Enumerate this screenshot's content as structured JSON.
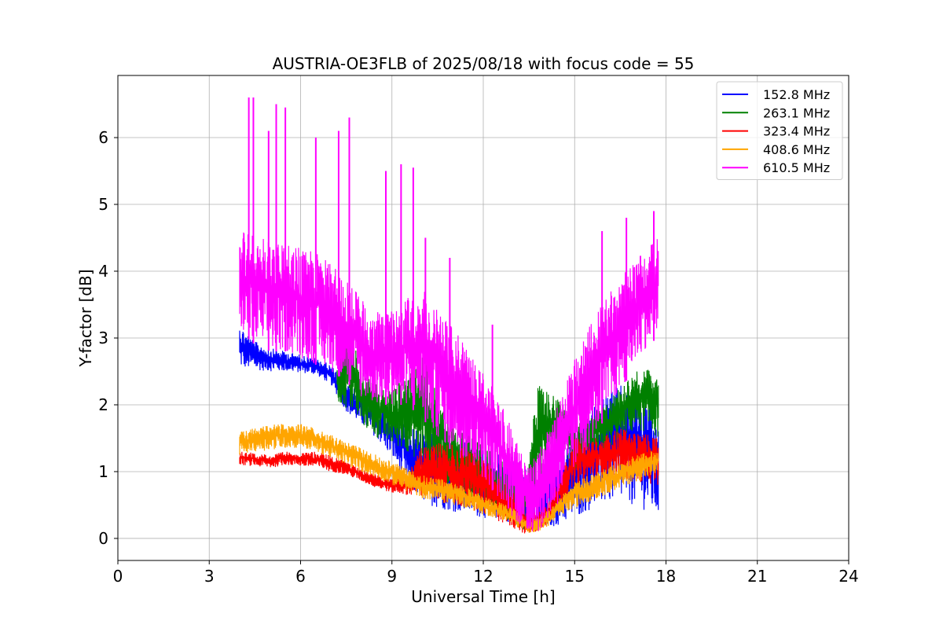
{
  "chart_data": {
    "type": "line",
    "title": "AUSTRIA-OE3FLB of 2025/08/18 with focus code = 55",
    "xlabel": "Universal Time [h]",
    "ylabel": "Y-factor [dB]",
    "xlim": [
      0,
      24
    ],
    "ylim": [
      -0.33,
      6.93
    ],
    "xticks": [
      0,
      3,
      6,
      9,
      12,
      15,
      18,
      21,
      24
    ],
    "yticks": [
      0,
      1,
      2,
      3,
      4,
      5,
      6
    ],
    "grid": true,
    "legend_position": "top-right",
    "series": [
      {
        "name": "152.8 MHz",
        "color": "#0000ff",
        "x": [
          4.0,
          4.5,
          5.0,
          5.5,
          6.0,
          6.5,
          7.0,
          7.5,
          8.0,
          8.5,
          9.0,
          9.5,
          10.0,
          10.5,
          11.0,
          11.5,
          12.0,
          12.5,
          13.0,
          13.3,
          13.6,
          14.0,
          14.5,
          15.0,
          15.5,
          16.0,
          16.5,
          17.0,
          17.4,
          17.75
        ],
        "y_low": [
          2.55,
          2.52,
          2.5,
          2.5,
          2.48,
          2.45,
          2.3,
          1.9,
          1.7,
          1.5,
          1.2,
          0.8,
          0.55,
          0.45,
          0.4,
          0.35,
          0.3,
          0.28,
          0.22,
          0.15,
          0.1,
          0.12,
          0.2,
          0.3,
          0.42,
          0.5,
          0.55,
          0.48,
          0.4,
          0.35
        ],
        "y_high": [
          3.2,
          2.95,
          2.85,
          2.8,
          2.75,
          2.7,
          2.6,
          2.3,
          2.2,
          2.0,
          1.95,
          1.7,
          1.6,
          1.55,
          1.5,
          1.45,
          1.35,
          1.3,
          1.25,
          1.1,
          1.0,
          1.05,
          1.2,
          1.5,
          1.9,
          2.2,
          2.3,
          2.3,
          2.1,
          1.6
        ]
      },
      {
        "name": "263.1 MHz",
        "color": "#008000",
        "x": [
          7.2,
          7.6,
          8.0,
          8.5,
          9.0,
          9.5,
          10.0,
          10.5,
          11.0,
          11.5,
          12.0,
          12.5,
          13.0,
          13.4,
          13.8,
          14.2,
          14.6,
          15.0,
          15.5,
          16.0,
          16.5,
          17.0,
          17.4,
          17.75
        ],
        "y_low": [
          2.0,
          1.9,
          1.7,
          1.5,
          1.4,
          1.3,
          1.1,
          0.9,
          0.75,
          0.6,
          0.45,
          0.35,
          0.2,
          0.1,
          0.5,
          1.2,
          1.3,
          1.0,
          1.1,
          1.3,
          1.5,
          1.6,
          1.6,
          1.5
        ],
        "y_high": [
          2.6,
          3.3,
          2.5,
          2.3,
          2.2,
          2.5,
          2.9,
          2.1,
          1.8,
          1.6,
          1.4,
          1.2,
          1.0,
          1.0,
          2.3,
          2.2,
          2.0,
          1.7,
          1.9,
          2.0,
          2.3,
          2.5,
          2.55,
          2.4
        ]
      },
      {
        "name": "323.4 MHz",
        "color": "#ff0000",
        "x": [
          4.0,
          4.5,
          5.0,
          5.5,
          6.0,
          6.5,
          7.0,
          7.5,
          8.0,
          8.5,
          9.0,
          9.5,
          10.0,
          10.5,
          11.0,
          11.5,
          12.0,
          12.5,
          13.0,
          13.4,
          13.8,
          14.2,
          14.6,
          15.0,
          15.5,
          16.0,
          16.5,
          17.0,
          17.4,
          17.75
        ],
        "y_low": [
          1.1,
          1.08,
          1.05,
          1.1,
          1.08,
          1.05,
          1.0,
          0.95,
          0.85,
          0.75,
          0.68,
          0.65,
          0.6,
          0.55,
          0.5,
          0.42,
          0.35,
          0.25,
          0.15,
          0.05,
          0.1,
          0.25,
          0.55,
          0.75,
          0.85,
          0.9,
          0.9,
          0.85,
          0.82,
          0.8
        ],
        "y_high": [
          1.3,
          1.28,
          1.25,
          1.3,
          1.28,
          1.3,
          1.25,
          1.15,
          1.05,
          0.95,
          0.9,
          0.95,
          1.4,
          1.45,
          1.4,
          1.35,
          1.2,
          1.0,
          0.7,
          0.4,
          0.4,
          0.6,
          1.0,
          1.5,
          1.5,
          1.55,
          1.65,
          1.6,
          1.6,
          1.5
        ]
      },
      {
        "name": "408.6 MHz",
        "color": "#ffa500",
        "x": [
          4.0,
          4.5,
          5.0,
          5.5,
          6.0,
          6.5,
          7.0,
          7.5,
          8.0,
          8.5,
          9.0,
          9.5,
          10.0,
          10.5,
          11.0,
          11.5,
          12.0,
          12.5,
          13.0,
          13.4,
          13.8,
          14.2,
          14.6,
          15.0,
          15.5,
          16.0,
          16.5,
          17.0,
          17.4,
          17.75
        ],
        "y_low": [
          1.25,
          1.3,
          1.32,
          1.35,
          1.35,
          1.3,
          1.2,
          1.1,
          1.0,
          0.9,
          0.8,
          0.7,
          0.6,
          0.55,
          0.5,
          0.45,
          0.35,
          0.3,
          0.2,
          0.08,
          0.1,
          0.2,
          0.35,
          0.45,
          0.55,
          0.65,
          0.75,
          0.85,
          0.9,
          0.95
        ],
        "y_high": [
          1.6,
          1.65,
          1.7,
          1.72,
          1.72,
          1.65,
          1.55,
          1.45,
          1.35,
          1.25,
          1.15,
          1.05,
          0.95,
          0.9,
          0.85,
          0.75,
          0.65,
          0.55,
          0.45,
          0.3,
          0.3,
          0.45,
          0.65,
          0.85,
          0.95,
          1.05,
          1.15,
          1.25,
          1.3,
          1.35
        ]
      },
      {
        "name": "610.5 MHz",
        "color": "#ff00ff",
        "x": [
          4.0,
          4.5,
          5.0,
          5.5,
          6.0,
          6.5,
          7.0,
          7.5,
          8.0,
          8.5,
          9.0,
          9.5,
          10.0,
          10.5,
          11.0,
          11.5,
          12.0,
          12.5,
          13.0,
          13.4,
          13.8,
          14.2,
          14.6,
          15.0,
          15.5,
          16.0,
          16.5,
          17.0,
          17.4,
          17.75
        ],
        "y_low": [
          3.1,
          2.9,
          2.8,
          2.8,
          2.7,
          2.6,
          2.5,
          2.35,
          2.1,
          2.0,
          2.0,
          2.0,
          1.8,
          1.5,
          1.3,
          1.1,
          0.9,
          0.6,
          0.3,
          0.05,
          0.1,
          0.3,
          0.6,
          1.0,
          1.4,
          1.8,
          2.2,
          2.6,
          2.9,
          3.0
        ],
        "y_high": [
          4.7,
          4.5,
          4.5,
          4.4,
          4.35,
          4.3,
          4.1,
          3.9,
          3.6,
          3.4,
          3.4,
          3.6,
          3.8,
          3.5,
          3.2,
          2.8,
          2.5,
          2.1,
          1.6,
          1.1,
          1.3,
          1.7,
          2.2,
          2.7,
          3.2,
          3.6,
          3.9,
          4.2,
          4.4,
          4.5
        ],
        "spikes": [
          {
            "x": 4.3,
            "y": 6.6
          },
          {
            "x": 4.45,
            "y": 6.6
          },
          {
            "x": 4.95,
            "y": 6.1
          },
          {
            "x": 5.2,
            "y": 6.5
          },
          {
            "x": 5.5,
            "y": 6.45
          },
          {
            "x": 6.5,
            "y": 6.0
          },
          {
            "x": 7.25,
            "y": 6.1
          },
          {
            "x": 7.6,
            "y": 6.3
          },
          {
            "x": 8.8,
            "y": 5.5
          },
          {
            "x": 9.3,
            "y": 5.6
          },
          {
            "x": 9.7,
            "y": 5.55
          },
          {
            "x": 10.1,
            "y": 4.5
          },
          {
            "x": 10.9,
            "y": 4.2
          },
          {
            "x": 12.3,
            "y": 3.2
          },
          {
            "x": 15.9,
            "y": 4.6
          },
          {
            "x": 16.7,
            "y": 4.8
          },
          {
            "x": 17.6,
            "y": 4.9
          }
        ]
      }
    ]
  }
}
